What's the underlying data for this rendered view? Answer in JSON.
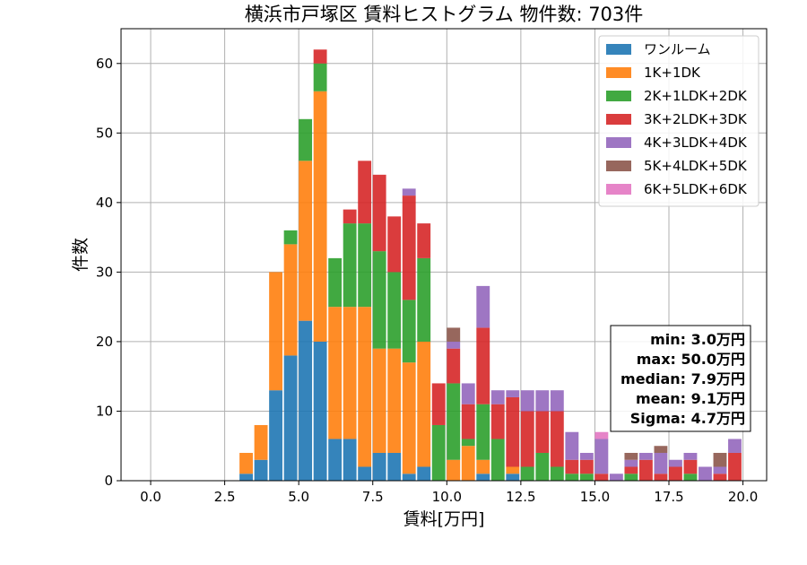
{
  "chart_data": {
    "type": "bar",
    "stacked": true,
    "title": "横浜市戸塚区 賃料ヒストグラム  物件数: 703件",
    "xlabel": "賃料[万円]",
    "ylabel": "件数",
    "xlim": [
      -1.0,
      20.8
    ],
    "ylim": [
      0,
      65
    ],
    "xticks": [
      0.0,
      2.5,
      5.0,
      7.5,
      10.0,
      12.5,
      15.0,
      17.5,
      20.0
    ],
    "xtick_labels": [
      "0.0",
      "2.5",
      "5.0",
      "7.5",
      "10.0",
      "12.5",
      "15.0",
      "17.5",
      "20.0"
    ],
    "yticks": [
      0,
      10,
      20,
      30,
      40,
      50,
      60
    ],
    "ytick_labels": [
      "0",
      "10",
      "20",
      "30",
      "40",
      "50",
      "60"
    ],
    "grid": true,
    "legend_position": "top-right",
    "bin_width": 0.5,
    "x": [
      3.0,
      3.5,
      4.0,
      4.5,
      5.0,
      5.5,
      6.0,
      6.5,
      7.0,
      7.5,
      8.0,
      8.5,
      9.0,
      9.5,
      10.0,
      10.5,
      11.0,
      11.5,
      12.0,
      12.5,
      13.0,
      13.5,
      14.0,
      14.5,
      15.0,
      15.5,
      16.0,
      16.5,
      17.0,
      17.5,
      18.0,
      18.5,
      19.0,
      19.5
    ],
    "series": [
      {
        "name": "ワンルーム",
        "color": "#1f77b4",
        "values": [
          1,
          3,
          13,
          18,
          23,
          20,
          6,
          6,
          2,
          4,
          4,
          1,
          2,
          0,
          0,
          0,
          1,
          0,
          1,
          0,
          0,
          0,
          0,
          0,
          0,
          0,
          0,
          0,
          0,
          0,
          0,
          0,
          0,
          0
        ]
      },
      {
        "name": "1K+1DK",
        "color": "#ff7f0e",
        "values": [
          3,
          5,
          17,
          16,
          23,
          36,
          19,
          19,
          23,
          15,
          15,
          16,
          18,
          0,
          3,
          5,
          2,
          0,
          1,
          0,
          0,
          0,
          0,
          0,
          0,
          0,
          0,
          0,
          0,
          0,
          0,
          0,
          0,
          0
        ]
      },
      {
        "name": "2K+1LDK+2DK",
        "color": "#2ca02c",
        "values": [
          0,
          0,
          0,
          2,
          6,
          4,
          7,
          12,
          12,
          14,
          11,
          9,
          12,
          8,
          11,
          1,
          8,
          6,
          0,
          2,
          4,
          2,
          1,
          1,
          0,
          0,
          1,
          0,
          0,
          0,
          1,
          0,
          0,
          0
        ]
      },
      {
        "name": "3K+2LDK+3DK",
        "color": "#d62728",
        "values": [
          0,
          0,
          0,
          0,
          0,
          2,
          0,
          2,
          9,
          11,
          8,
          15,
          5,
          6,
          5,
          5,
          11,
          5,
          10,
          8,
          6,
          8,
          2,
          2,
          1,
          0,
          1,
          3,
          1,
          2,
          2,
          0,
          1,
          4
        ]
      },
      {
        "name": "4K+3LDK+4DK",
        "color": "#9467bd",
        "values": [
          0,
          0,
          0,
          0,
          0,
          0,
          0,
          0,
          0,
          0,
          0,
          1,
          0,
          0,
          1,
          3,
          6,
          2,
          1,
          3,
          3,
          3,
          4,
          1,
          5,
          1,
          1,
          1,
          3,
          1,
          1,
          2,
          1,
          2
        ]
      },
      {
        "name": "5K+4LDK+5DK",
        "color": "#8c564b",
        "values": [
          0,
          0,
          0,
          0,
          0,
          0,
          0,
          0,
          0,
          0,
          0,
          0,
          0,
          0,
          2,
          0,
          0,
          0,
          0,
          0,
          0,
          0,
          0,
          0,
          0,
          0,
          1,
          0,
          1,
          0,
          0,
          0,
          2,
          0
        ]
      },
      {
        "name": "6K+5LDK+6DK",
        "color": "#e377c2",
        "values": [
          0,
          0,
          0,
          0,
          0,
          0,
          0,
          0,
          0,
          0,
          0,
          0,
          0,
          0,
          0,
          0,
          0,
          0,
          0,
          0,
          0,
          0,
          0,
          0,
          1,
          0,
          0,
          0,
          0,
          0,
          0,
          0,
          0,
          0
        ]
      }
    ],
    "stats": [
      "min: 3.0万円",
      "max: 50.0万円",
      "median: 7.9万円",
      "mean: 9.1万円",
      "Sigma: 4.7万円"
    ]
  }
}
